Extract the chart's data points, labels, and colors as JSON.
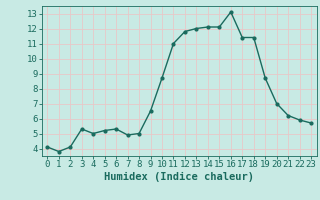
{
  "x": [
    0,
    1,
    2,
    3,
    4,
    5,
    6,
    7,
    8,
    9,
    10,
    11,
    12,
    13,
    14,
    15,
    16,
    17,
    18,
    19,
    20,
    21,
    22,
    23
  ],
  "y": [
    4.1,
    3.8,
    4.1,
    5.3,
    5.0,
    5.2,
    5.3,
    4.9,
    5.0,
    6.5,
    8.7,
    11.0,
    11.8,
    12.0,
    12.1,
    12.1,
    13.1,
    11.4,
    11.4,
    8.7,
    7.0,
    6.2,
    5.9,
    5.7
  ],
  "line_color": "#1a6b5e",
  "marker": "o",
  "marker_size": 2.0,
  "bg_color": "#c8eae4",
  "grid_color": "#e8c8c8",
  "xlabel": "Humidex (Indice chaleur)",
  "xlim": [
    -0.5,
    23.5
  ],
  "ylim": [
    3.5,
    13.5
  ],
  "yticks": [
    4,
    5,
    6,
    7,
    8,
    9,
    10,
    11,
    12,
    13
  ],
  "xticks": [
    0,
    1,
    2,
    3,
    4,
    5,
    6,
    7,
    8,
    9,
    10,
    11,
    12,
    13,
    14,
    15,
    16,
    17,
    18,
    19,
    20,
    21,
    22,
    23
  ],
  "tick_color": "#1a6b5e",
  "label_color": "#1a6b5e",
  "xlabel_fontsize": 7.5,
  "tick_fontsize": 6.5
}
